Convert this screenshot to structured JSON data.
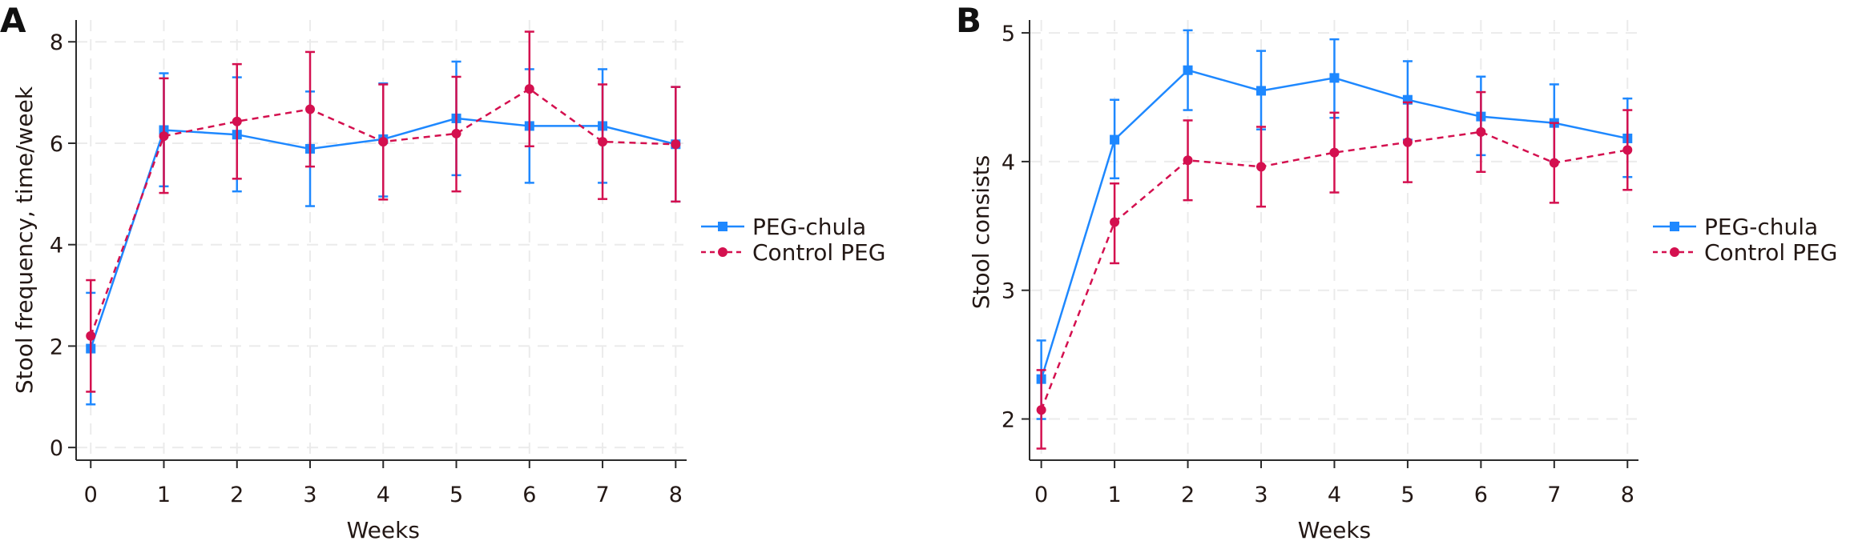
{
  "colors": {
    "peg_chula": "#1e88ff",
    "control_peg": "#d4104f",
    "text": "#231815",
    "grid": "#ebebeb"
  },
  "chart_data": [
    {
      "panel": "A",
      "type": "line",
      "title": "",
      "xlabel": "Weeks",
      "ylabel": "Stool frequency, time/week",
      "x": [
        0,
        1,
        2,
        3,
        4,
        5,
        6,
        7,
        8
      ],
      "x_ticks": [
        "0",
        "1",
        "2",
        "3",
        "4",
        "5",
        "6",
        "7",
        "8"
      ],
      "y_ticks": [
        "0",
        "2",
        "4",
        "6",
        "8"
      ],
      "y_tick_values": [
        0,
        2,
        4,
        6,
        8
      ],
      "xlim": [
        -0.2,
        8.15
      ],
      "ylim": [
        -0.25,
        8.43
      ],
      "grid": true,
      "legend_position": "right",
      "series": [
        {
          "name": "PEG-chula",
          "style": "solid",
          "marker": "square",
          "values": [
            1.95,
            6.26,
            6.17,
            5.89,
            6.08,
            6.49,
            6.34,
            6.34,
            5.98
          ],
          "ci_low": [
            0.85,
            5.15,
            5.05,
            4.76,
            4.95,
            5.37,
            5.22,
            5.22,
            4.85
          ],
          "ci_high": [
            3.05,
            7.38,
            7.3,
            7.02,
            7.18,
            7.61,
            7.46,
            7.46,
            7.11
          ]
        },
        {
          "name": "Control PEG",
          "style": "dashed",
          "marker": "circle",
          "values": [
            2.2,
            6.14,
            6.43,
            6.67,
            6.03,
            6.19,
            7.07,
            6.03,
            5.98
          ],
          "ci_low": [
            1.1,
            5.02,
            5.3,
            5.54,
            4.89,
            5.05,
            5.94,
            4.9,
            4.85
          ],
          "ci_high": [
            3.3,
            7.28,
            7.56,
            7.8,
            7.16,
            7.31,
            8.2,
            7.16,
            7.11
          ]
        }
      ]
    },
    {
      "panel": "B",
      "type": "line",
      "title": "",
      "xlabel": "Weeks",
      "ylabel": "Stool consists",
      "x": [
        0,
        1,
        2,
        3,
        4,
        5,
        6,
        7,
        8
      ],
      "x_ticks": [
        "0",
        "1",
        "2",
        "3",
        "4",
        "5",
        "6",
        "7",
        "8"
      ],
      "y_ticks": [
        "2",
        "3",
        "4",
        "5"
      ],
      "y_tick_values": [
        2,
        3,
        4,
        5
      ],
      "xlim": [
        -0.16,
        8.15
      ],
      "ylim": [
        1.68,
        5.1
      ],
      "grid": true,
      "legend_position": "right",
      "series": [
        {
          "name": "PEG-chula",
          "style": "solid",
          "marker": "square",
          "values": [
            2.31,
            4.17,
            4.71,
            4.55,
            4.65,
            4.48,
            4.35,
            4.3,
            4.18
          ],
          "ci_low": [
            2.0,
            3.87,
            4.4,
            4.25,
            4.34,
            4.17,
            4.05,
            4.0,
            3.88
          ],
          "ci_high": [
            2.61,
            4.48,
            5.02,
            4.86,
            4.95,
            4.78,
            4.66,
            4.6,
            4.49
          ]
        },
        {
          "name": "Control PEG",
          "style": "dashed",
          "marker": "circle",
          "values": [
            2.07,
            3.53,
            4.01,
            3.96,
            4.07,
            4.15,
            4.23,
            3.99,
            4.09
          ],
          "ci_low": [
            1.77,
            3.21,
            3.7,
            3.65,
            3.76,
            3.84,
            3.92,
            3.68,
            3.78
          ],
          "ci_high": [
            2.38,
            3.83,
            4.32,
            4.27,
            4.38,
            4.46,
            4.54,
            4.3,
            4.4
          ]
        }
      ]
    }
  ]
}
